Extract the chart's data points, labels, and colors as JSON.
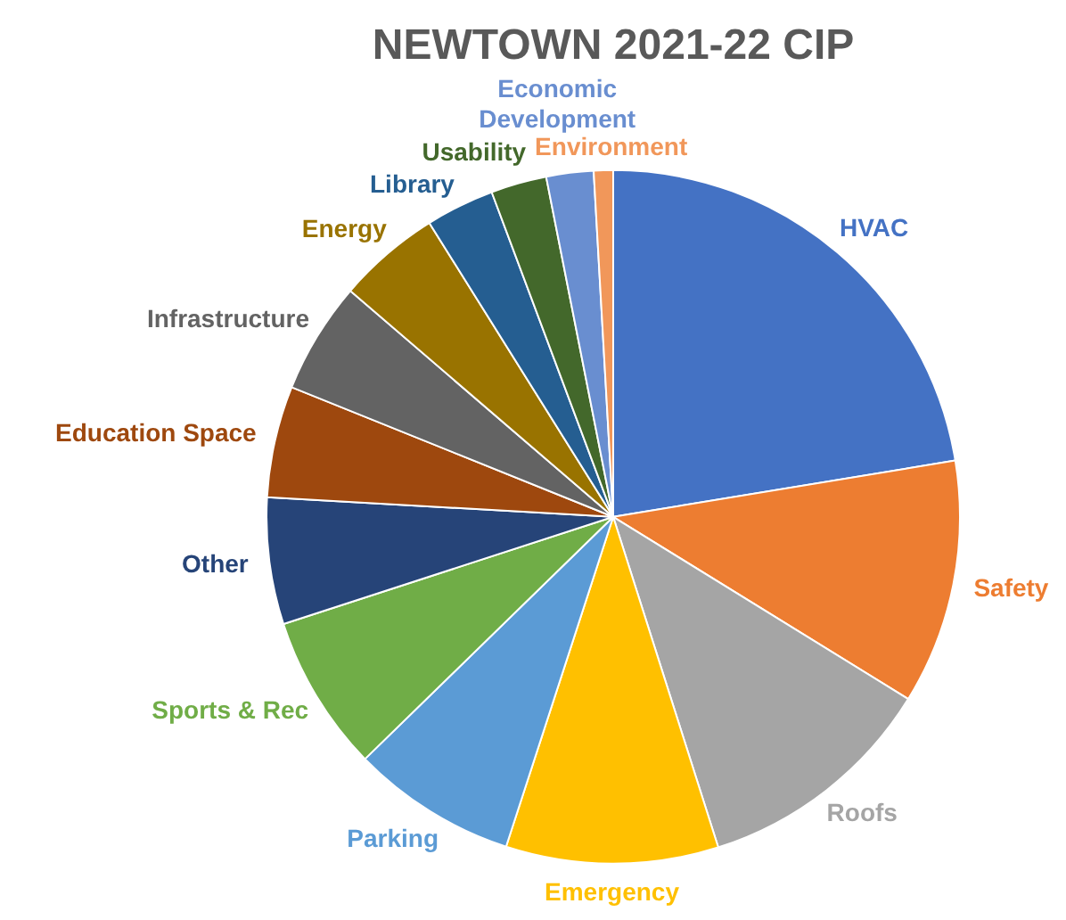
{
  "chart_data": {
    "type": "pie",
    "title": "NEWTOWN 2021-22 CIP",
    "categories": [
      "HVAC",
      "Safety",
      "Roofs",
      "Emergency",
      "Parking",
      "Sports & Rec",
      "Other",
      "Education Space",
      "Infrastructure",
      "Energy",
      "Library",
      "Usability",
      "Economic Development",
      "Environment"
    ],
    "values": [
      22.4,
      11.4,
      11.3,
      9.9,
      7.7,
      7.3,
      5.9,
      5.2,
      5.2,
      4.8,
      3.2,
      2.6,
      2.2,
      0.9
    ],
    "colors": [
      "#4472c4",
      "#ed7d31",
      "#a5a5a5",
      "#ffc000",
      "#5b9bd5",
      "#70ad47",
      "#264478",
      "#9e480e",
      "#636363",
      "#997300",
      "#255e91",
      "#43682b",
      "#698ed0",
      "#f1975a"
    ],
    "legend": false
  }
}
